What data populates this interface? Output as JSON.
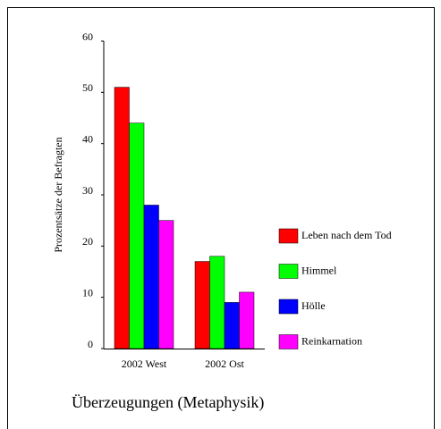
{
  "chart_data": {
    "type": "bar",
    "title": "Überzeugungen (Metaphysik)",
    "y_label": "Prozentsätze der Befragten",
    "categories": [
      "2002 West",
      "2002 Ost"
    ],
    "series": [
      {
        "name": "Leben nach dem Tod",
        "color": "#ff0000",
        "values": [
          51,
          17
        ]
      },
      {
        "name": "Himmel",
        "color": "#00ff00",
        "values": [
          44,
          18
        ]
      },
      {
        "name": "Hölle",
        "color": "#0000ff",
        "values": [
          28,
          9
        ]
      },
      {
        "name": "Reinkarnation",
        "color": "#ff00ff",
        "values": [
          25,
          11
        ]
      }
    ],
    "ylim": [
      0,
      60
    ],
    "yticks": [
      0,
      10,
      20,
      30,
      40,
      50,
      60
    ],
    "legend": "right"
  }
}
